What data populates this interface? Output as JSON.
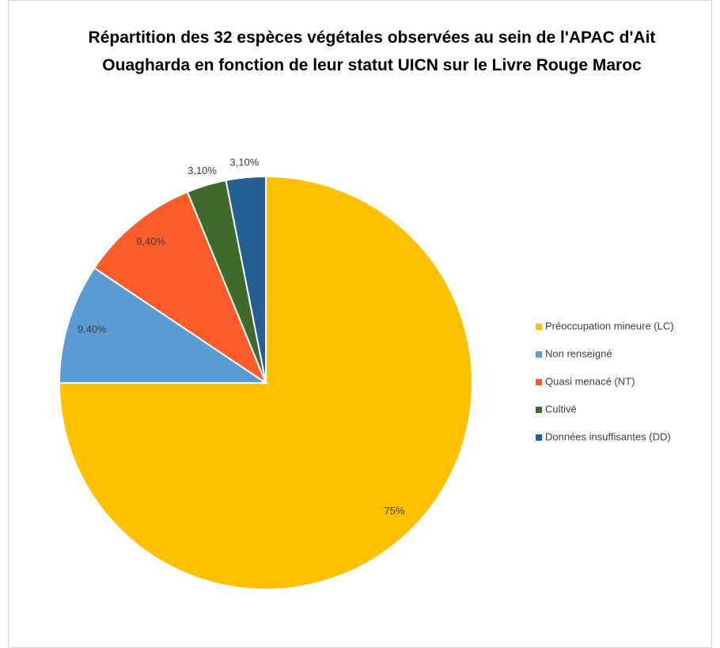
{
  "chart_data": {
    "type": "pie",
    "title": "Répartition des 32 espèces végétales observées au sein de l'APAC d'Ait Ouagharda en fonction de leur statut UICN sur le Livre Rouge Maroc",
    "categories": [
      "Préoccupation mineure (LC)",
      "Non renseigné",
      "Quasi menacé (NT)",
      "Cultivé",
      "Données insuffisantes (DD)"
    ],
    "values": [
      75,
      9.4,
      9.4,
      3.1,
      3.1
    ],
    "value_labels": [
      "75%",
      "9,40%",
      "9,40%",
      "3,10%",
      "3,10%"
    ],
    "colors": [
      "#FFC000",
      "#5B9BD5",
      "#FC5B2B",
      "#3E6B2C",
      "#255E91"
    ],
    "legend": "right"
  }
}
